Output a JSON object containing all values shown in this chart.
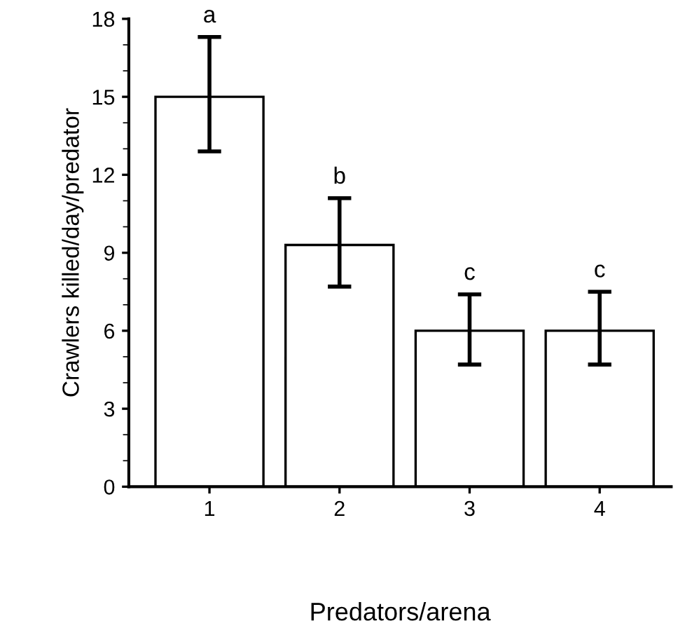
{
  "chart_data": {
    "type": "bar",
    "xlabel": "Predators/arena",
    "ylabel": "Crawlers killed/day/predator",
    "categories": [
      "1",
      "2",
      "3",
      "4"
    ],
    "values": [
      15.0,
      9.3,
      6.0,
      6.0
    ],
    "errors": [
      [
        12.9,
        17.3
      ],
      [
        7.7,
        11.1
      ],
      [
        4.7,
        7.4
      ],
      [
        4.7,
        7.5
      ]
    ],
    "color": "#ffffff",
    "ylim": [
      0,
      18
    ],
    "yticks": [
      0,
      3,
      6,
      9,
      12,
      15,
      18
    ],
    "annotations": [
      {
        "text": "a",
        "x": "1",
        "y": 17.3
      },
      {
        "text": "b",
        "x": "2",
        "y": 11.1
      },
      {
        "text": "c",
        "x": "3",
        "y": 7.4
      },
      {
        "text": "c",
        "x": "4",
        "y": 7.5
      }
    ],
    "grid": false,
    "legend": false
  }
}
